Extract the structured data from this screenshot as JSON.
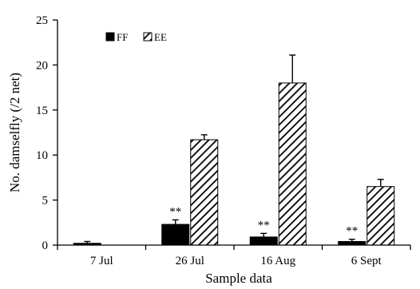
{
  "chart_data": {
    "type": "bar",
    "title": "",
    "xlabel": "Sample data",
    "ylabel": "No. damselfly (/2 net)",
    "ylim": [
      0,
      25
    ],
    "yticks": [
      0,
      5,
      10,
      15,
      20,
      25
    ],
    "grid": false,
    "legend_position": "top-left",
    "categories": [
      "7 Jul",
      "26 Jul",
      "16 Aug",
      "6 Sept"
    ],
    "series": [
      {
        "name": "FF",
        "fill": "solid",
        "color": "#000000",
        "values": [
          0.2,
          2.3,
          0.9,
          0.4
        ],
        "errors": [
          0.2,
          0.5,
          0.4,
          0.25
        ],
        "annotations": [
          "",
          "**",
          "**",
          "**"
        ]
      },
      {
        "name": "EE",
        "fill": "hatched",
        "color": "#000000",
        "values": [
          0,
          11.7,
          18.0,
          6.5
        ],
        "errors": [
          0,
          0.55,
          3.1,
          0.8
        ],
        "annotations": [
          "",
          "",
          "",
          ""
        ]
      }
    ]
  }
}
